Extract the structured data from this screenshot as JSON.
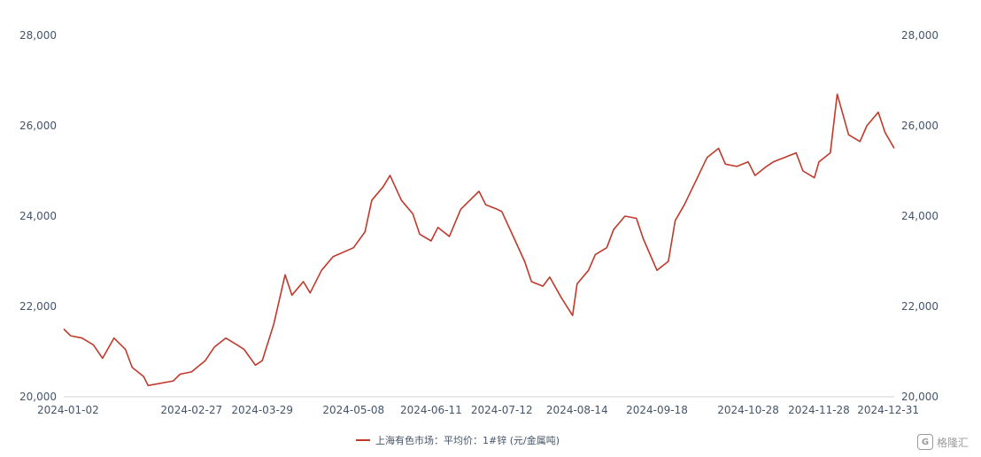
{
  "chart_data": {
    "type": "line",
    "title": "",
    "xlabel": "",
    "ylabel": "",
    "ylim": [
      20000,
      28000
    ],
    "y_ticks": [
      "20,000",
      "22,000",
      "24,000",
      "26,000",
      "28,000"
    ],
    "y_tick_values": [
      20000,
      22000,
      24000,
      26000,
      28000
    ],
    "dual_y_axis": true,
    "grid": false,
    "legend_position": "bottom",
    "x_tick_labels": [
      "2024-01-02",
      "2024-02-27",
      "2024-03-29",
      "2024-05-08",
      "2024-06-11",
      "2024-07-12",
      "2024-08-14",
      "2024-09-18",
      "2024-10-28",
      "2024-11-28",
      "2024-12-31"
    ],
    "series": [
      {
        "name": "上海有色市场：平均价：1#锌 (元/金属吨)",
        "color": "#c0392b",
        "x": [
          "2024-01-02",
          "2024-01-05",
          "2024-01-10",
          "2024-01-15",
          "2024-01-19",
          "2024-01-24",
          "2024-01-29",
          "2024-02-01",
          "2024-02-06",
          "2024-02-08",
          "2024-02-19",
          "2024-02-22",
          "2024-02-27",
          "2024-03-04",
          "2024-03-08",
          "2024-03-13",
          "2024-03-18",
          "2024-03-21",
          "2024-03-26",
          "2024-03-29",
          "2024-04-03",
          "2024-04-08",
          "2024-04-11",
          "2024-04-16",
          "2024-04-19",
          "2024-04-24",
          "2024-04-29",
          "2024-05-08",
          "2024-05-13",
          "2024-05-16",
          "2024-05-21",
          "2024-05-24",
          "2024-05-29",
          "2024-06-03",
          "2024-06-06",
          "2024-06-11",
          "2024-06-14",
          "2024-06-19",
          "2024-06-24",
          "2024-06-27",
          "2024-07-02",
          "2024-07-05",
          "2024-07-10",
          "2024-07-12",
          "2024-07-17",
          "2024-07-22",
          "2024-07-25",
          "2024-07-30",
          "2024-08-02",
          "2024-08-07",
          "2024-08-12",
          "2024-08-14",
          "2024-08-19",
          "2024-08-22",
          "2024-08-27",
          "2024-08-30",
          "2024-09-04",
          "2024-09-09",
          "2024-09-12",
          "2024-09-18",
          "2024-09-23",
          "2024-09-26",
          "2024-09-30",
          "2024-10-10",
          "2024-10-15",
          "2024-10-18",
          "2024-10-23",
          "2024-10-28",
          "2024-10-31",
          "2024-11-05",
          "2024-11-08",
          "2024-11-13",
          "2024-11-18",
          "2024-11-21",
          "2024-11-26",
          "2024-11-28",
          "2024-12-03",
          "2024-12-06",
          "2024-12-11",
          "2024-12-16",
          "2024-12-19",
          "2024-12-24",
          "2024-12-27",
          "2024-12-31"
        ],
        "values": [
          21500,
          21350,
          21300,
          21150,
          20850,
          21300,
          21050,
          20650,
          20450,
          20250,
          20350,
          20500,
          20550,
          20800,
          21100,
          21300,
          21150,
          21050,
          20700,
          20800,
          21600,
          22700,
          22250,
          22550,
          22300,
          22800,
          23100,
          23300,
          23650,
          24350,
          24650,
          24900,
          24350,
          24050,
          23600,
          23450,
          23750,
          23550,
          24150,
          24300,
          24550,
          24250,
          24150,
          24100,
          23550,
          23000,
          22550,
          22450,
          22650,
          22200,
          21800,
          22500,
          22800,
          23150,
          23300,
          23700,
          24000,
          23950,
          23500,
          22800,
          23000,
          23900,
          24250,
          25300,
          25500,
          25150,
          25100,
          25200,
          24900,
          25100,
          25200,
          25300,
          25400,
          25000,
          24850,
          25200,
          25400,
          26700,
          25800,
          25650,
          26000,
          26300,
          25850,
          25500
        ]
      }
    ]
  },
  "watermark": {
    "logo_glyph": "G",
    "text": "格隆汇"
  }
}
